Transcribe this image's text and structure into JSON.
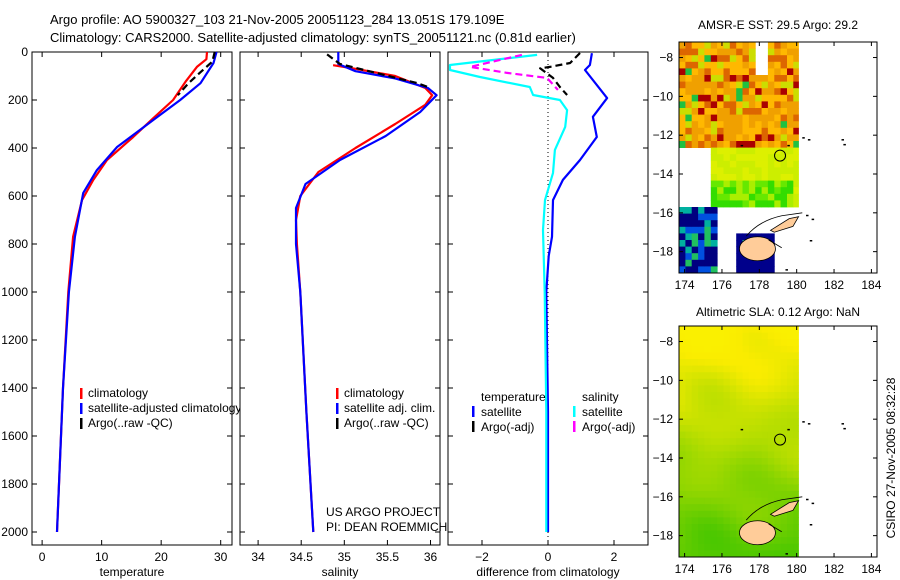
{
  "header": {
    "line1": "Argo profile: AO 5900327_103 21-Nov-2005 20051123_284 13.051S 179.109E",
    "line2": "Climatology: CARS2000. Satellite-adjusted climatology: synTS_20051121.nc (0.81d earlier)"
  },
  "credits": {
    "project": "US ARGO PROJECT",
    "pi": "PI: DEAN ROEMMICH",
    "stamp": "CSIRO 27-Nov-2005 08:32:28"
  },
  "colors": {
    "red": "#ff0000",
    "blue": "#0000ff",
    "black": "#000000",
    "cyan": "#00ffff",
    "magenta": "#ff00ff",
    "land": "#ffcc99"
  },
  "chart_data": [
    {
      "type": "line",
      "title": "",
      "xlabel": "temperature",
      "ylabel": "",
      "xlim": [
        -1.7,
        31.9
      ],
      "ylim": [
        2055,
        0
      ],
      "xticks": [
        0,
        10,
        20,
        30
      ],
      "yticks": [
        0,
        200,
        400,
        600,
        800,
        1000,
        1200,
        1400,
        1600,
        1800,
        2000
      ],
      "legend": [
        "climatology",
        "satellite-adjusted climatology",
        "Argo(..raw -QC)"
      ],
      "series": [
        {
          "name": "climatology",
          "color": "#ff0000",
          "depth": [
            0,
            30,
            62,
            120,
            200,
            280,
            354,
            450,
            533,
            617,
            770,
            1000,
            1400,
            2000
          ],
          "values": [
            27.7,
            27.6,
            26.0,
            24.2,
            22.0,
            18.5,
            15.3,
            10.9,
            8.6,
            6.7,
            5.2,
            4.4,
            3.5,
            2.5
          ]
        },
        {
          "name": "satellite-adjusted climatology",
          "color": "#0000ff",
          "depth": [
            0,
            46,
            130,
            200,
            283,
            396,
            492,
            588,
            770,
            1000,
            1400,
            2000
          ],
          "values": [
            29.3,
            28.8,
            26.6,
            23.2,
            18.7,
            12.6,
            9.2,
            6.9,
            5.5,
            4.5,
            3.5,
            2.5
          ]
        },
        {
          "name": "Argo(..raw -QC)",
          "color": "#000000",
          "dashed": true,
          "depth": [
            0,
            40,
            80,
            130,
            180
          ],
          "values": [
            29.0,
            28.6,
            26.8,
            24.6,
            22.8
          ]
        }
      ]
    },
    {
      "type": "line",
      "xlabel": "salinity",
      "xlim": [
        33.79,
        36.11
      ],
      "ylim": [
        2055,
        0
      ],
      "xticks": [
        34,
        34.5,
        35,
        35.5,
        36
      ],
      "yticks": [
        0,
        200,
        400,
        600,
        800,
        1000,
        1200,
        1400,
        1600,
        1800,
        2000
      ],
      "legend": [
        "climatology",
        "satellite adj. clim.",
        "Argo(..raw -QC)"
      ],
      "series": [
        {
          "name": "climatology",
          "color": "#ff0000",
          "depth": [
            55,
            70,
            100,
            150,
            180,
            220,
            300,
            400,
            500,
            600,
            700,
            800,
            1000,
            1500,
            2000
          ],
          "values": [
            34.87,
            35.13,
            35.59,
            35.94,
            36.02,
            35.94,
            35.59,
            35.13,
            34.7,
            34.49,
            34.44,
            34.45,
            34.49,
            34.56,
            34.64
          ]
        },
        {
          "name": "satellite adj. clim.",
          "color": "#0000ff",
          "depth": [
            0,
            50,
            80,
            110,
            150,
            180,
            250,
            350,
            450,
            550,
            650,
            800,
            1000,
            1500,
            2000
          ],
          "values": [
            34.93,
            34.93,
            35.13,
            35.59,
            35.97,
            36.07,
            35.88,
            35.48,
            34.95,
            34.55,
            34.44,
            34.44,
            34.49,
            34.56,
            34.64
          ]
        },
        {
          "name": "Argo(..raw -QC)",
          "color": "#000000",
          "dashed": true,
          "depth": [
            10,
            50,
            90,
            130,
            150
          ],
          "values": [
            34.8,
            34.95,
            35.4,
            35.85,
            36.0
          ]
        }
      ]
    },
    {
      "type": "line",
      "xlabel": "difference from climatology",
      "xlim": [
        -3.03,
        3.03
      ],
      "ylim": [
        2055,
        0
      ],
      "xticks": [
        -2,
        0,
        2
      ],
      "yticks": [
        0,
        200,
        400,
        600,
        800,
        1000,
        1200,
        1400,
        1600,
        1800,
        2000
      ],
      "legend_groups": [
        {
          "title": "temperature",
          "items": [
            "satellite",
            "Argo(-adj)"
          ]
        },
        {
          "title": "salinity",
          "items": [
            "satellite",
            "Argo(-adj)"
          ]
        }
      ],
      "series": [
        {
          "name": "temperature satellite",
          "color": "#0000ff",
          "depth": [
            5,
            54,
            75,
            192,
            270,
            354,
            450,
            533,
            617,
            770,
            850,
            1000,
            1500,
            2000
          ],
          "values": [
            1.33,
            1.27,
            1.12,
            1.79,
            1.36,
            1.48,
            0.97,
            0.45,
            0.15,
            0.12,
            0.02,
            -0.05,
            0.0,
            0.0
          ]
        },
        {
          "name": "salinity satellite",
          "color": "#00ffff",
          "depth": [
            12,
            54,
            75,
            104,
            146,
            179,
            200,
            242,
            312,
            408,
            504,
            617,
            742,
            1000,
            1500,
            2000
          ],
          "values": [
            -0.33,
            -2.97,
            -2.97,
            -2.06,
            -0.55,
            -0.45,
            0.36,
            0.58,
            0.52,
            0.21,
            0.15,
            -0.09,
            -0.15,
            -0.1,
            -0.05,
            -0.05
          ]
        },
        {
          "name": "temperature Argo(-adj)",
          "color": "#000000",
          "dashed": true,
          "depth": [
            4,
            46,
            62,
            68,
            108,
            146,
            179
          ],
          "values": [
            0.97,
            0.67,
            0.06,
            -0.24,
            0.15,
            0.36,
            0.58
          ]
        },
        {
          "name": "salinity Argo(-adj)",
          "color": "#ff00ff",
          "dashed": true,
          "depth": [
            12,
            62,
            87,
            108,
            158
          ],
          "values": [
            -0.79,
            -2.36,
            -1.24,
            -0.03,
            0.3
          ]
        }
      ]
    },
    {
      "type": "heatmap",
      "title": "AMSR-E SST: 29.5 Argo: 29.2",
      "xlim": [
        173.7,
        184.3
      ],
      "ylim": [
        -19.1,
        -7.2
      ],
      "xticks": [
        174,
        176,
        178,
        180,
        182,
        184
      ],
      "yticks": [
        -8,
        -10,
        -12,
        -14,
        -16,
        -18
      ],
      "float_position": {
        "lon": 179.109,
        "lat": -13.051
      }
    },
    {
      "type": "heatmap",
      "title": "Altimetric SLA: 0.12 Argo: NaN",
      "xlim": [
        173.7,
        184.3
      ],
      "ylim": [
        -19.1,
        -7.2
      ],
      "xticks": [
        174,
        176,
        178,
        180,
        182,
        184
      ],
      "yticks": [
        -8,
        -10,
        -12,
        -14,
        -16,
        -18
      ],
      "float_position": {
        "lon": 179.109,
        "lat": -13.051
      }
    }
  ]
}
